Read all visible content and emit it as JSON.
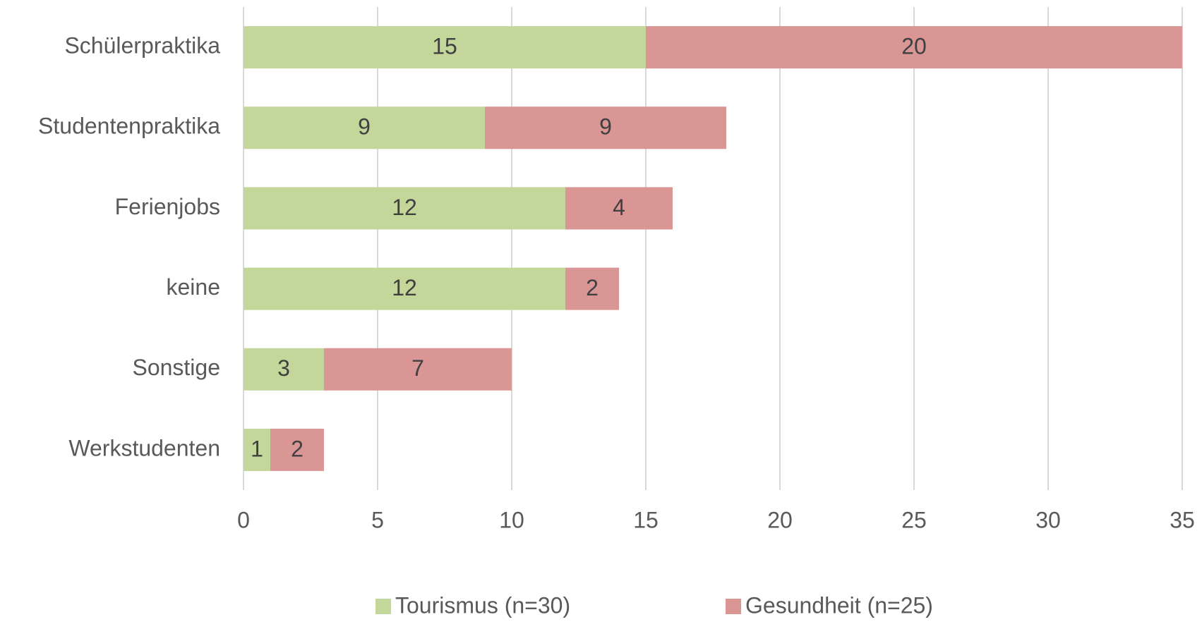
{
  "chart_data": {
    "type": "bar",
    "orientation": "horizontal",
    "stacked": true,
    "categories": [
      "Schülerpraktika",
      "Studentenpraktika",
      "Ferienjobs",
      "keine",
      "Sonstige",
      "Werkstudenten"
    ],
    "series": [
      {
        "name": "Tourismus (n=30)",
        "color": "#c4d79b",
        "values": [
          15,
          9,
          12,
          12,
          3,
          1
        ]
      },
      {
        "name": "Gesundheit (n=25)",
        "color": "#da9694",
        "values": [
          20,
          9,
          4,
          2,
          7,
          2
        ]
      }
    ],
    "xlim": [
      0,
      35
    ],
    "xticks": [
      0,
      5,
      10,
      15,
      20,
      25,
      30,
      35
    ],
    "grid": true,
    "legend": "bottom"
  }
}
